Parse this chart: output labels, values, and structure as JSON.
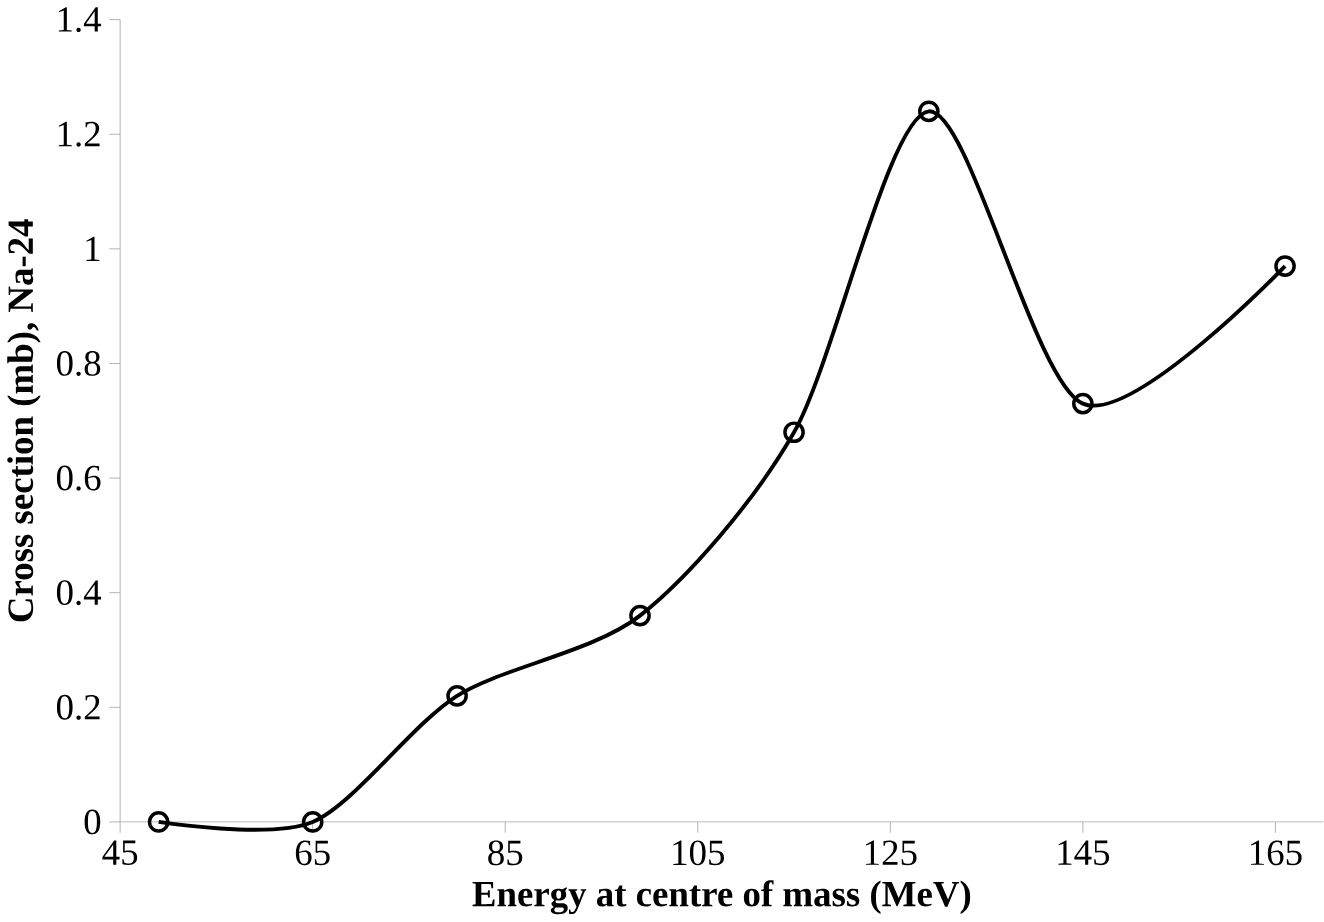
{
  "chart_data": {
    "type": "line",
    "xlabel": "Energy at centre of mass (MeV)",
    "ylabel": "Cross section (mb), Na-24",
    "x": [
      49,
      65,
      80,
      99,
      115,
      129,
      145,
      166
    ],
    "series": [
      {
        "color": "#000000",
        "values": [
          0,
          0,
          0.22,
          0.36,
          0.68,
          1.24,
          0.73,
          0.97
        ]
      }
    ],
    "xlim": [
      45,
      170
    ],
    "xticks": [
      45,
      65,
      85,
      105,
      125,
      145,
      165
    ],
    "ylim": [
      0,
      1.4
    ],
    "yticks": [
      0,
      0.2,
      0.4,
      0.6,
      0.8,
      1,
      1.2,
      1.4
    ],
    "marker": "circle",
    "line_style": "solid"
  }
}
